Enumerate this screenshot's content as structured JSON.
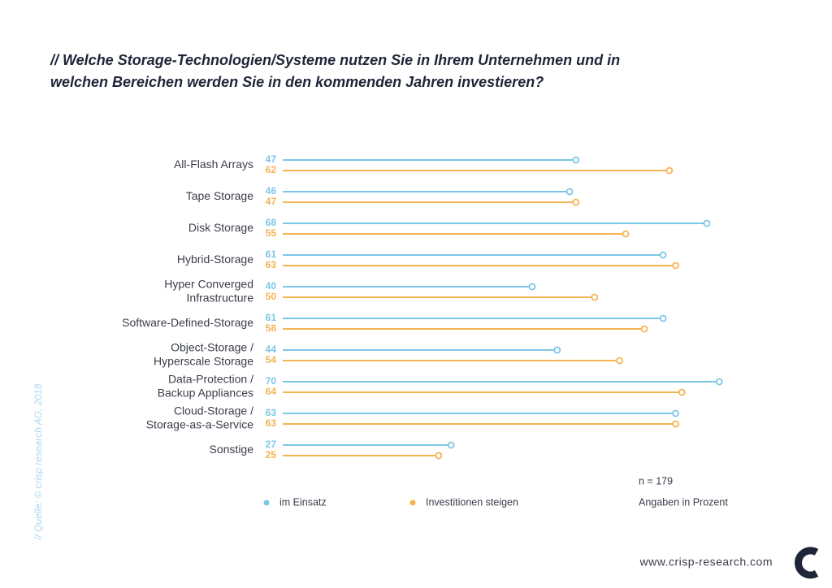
{
  "chart_data": {
    "type": "lollipop",
    "title": [
      "// Welche Storage-Technologien/Systeme nutzen Sie in Ihrem Unternehmen und in",
      "welchen Bereichen werden Sie in den kommenden Jahren investieren?"
    ],
    "categories": [
      [
        "All-Flash Arrays"
      ],
      [
        "Tape Storage"
      ],
      [
        "Disk Storage"
      ],
      [
        "Hybrid-Storage"
      ],
      [
        "Hyper Converged",
        "Infrastructure"
      ],
      [
        "Software-Defined-Storage"
      ],
      [
        "Object-Storage /",
        "Hyperscale Storage"
      ],
      [
        "Data-Protection /",
        "Backup  Appliances"
      ],
      [
        "Cloud-Storage /",
        "Storage-as-a-Service"
      ],
      [
        "Sonstige"
      ]
    ],
    "series": [
      {
        "name": "im Einsatz",
        "color": "#7cc6e8",
        "values": [
          47,
          46,
          68,
          61,
          40,
          61,
          44,
          70,
          63,
          27
        ]
      },
      {
        "name": "Investitionen steigen",
        "color": "#f5b352",
        "values": [
          62,
          47,
          55,
          63,
          50,
          58,
          54,
          64,
          63,
          25
        ]
      }
    ],
    "xlim": [
      0,
      80
    ],
    "notes": [
      "n = 179",
      "Angaben in Prozent"
    ],
    "source": "// Quelle: © crisp research AG, 2018",
    "website": "www.crisp-research.com"
  }
}
